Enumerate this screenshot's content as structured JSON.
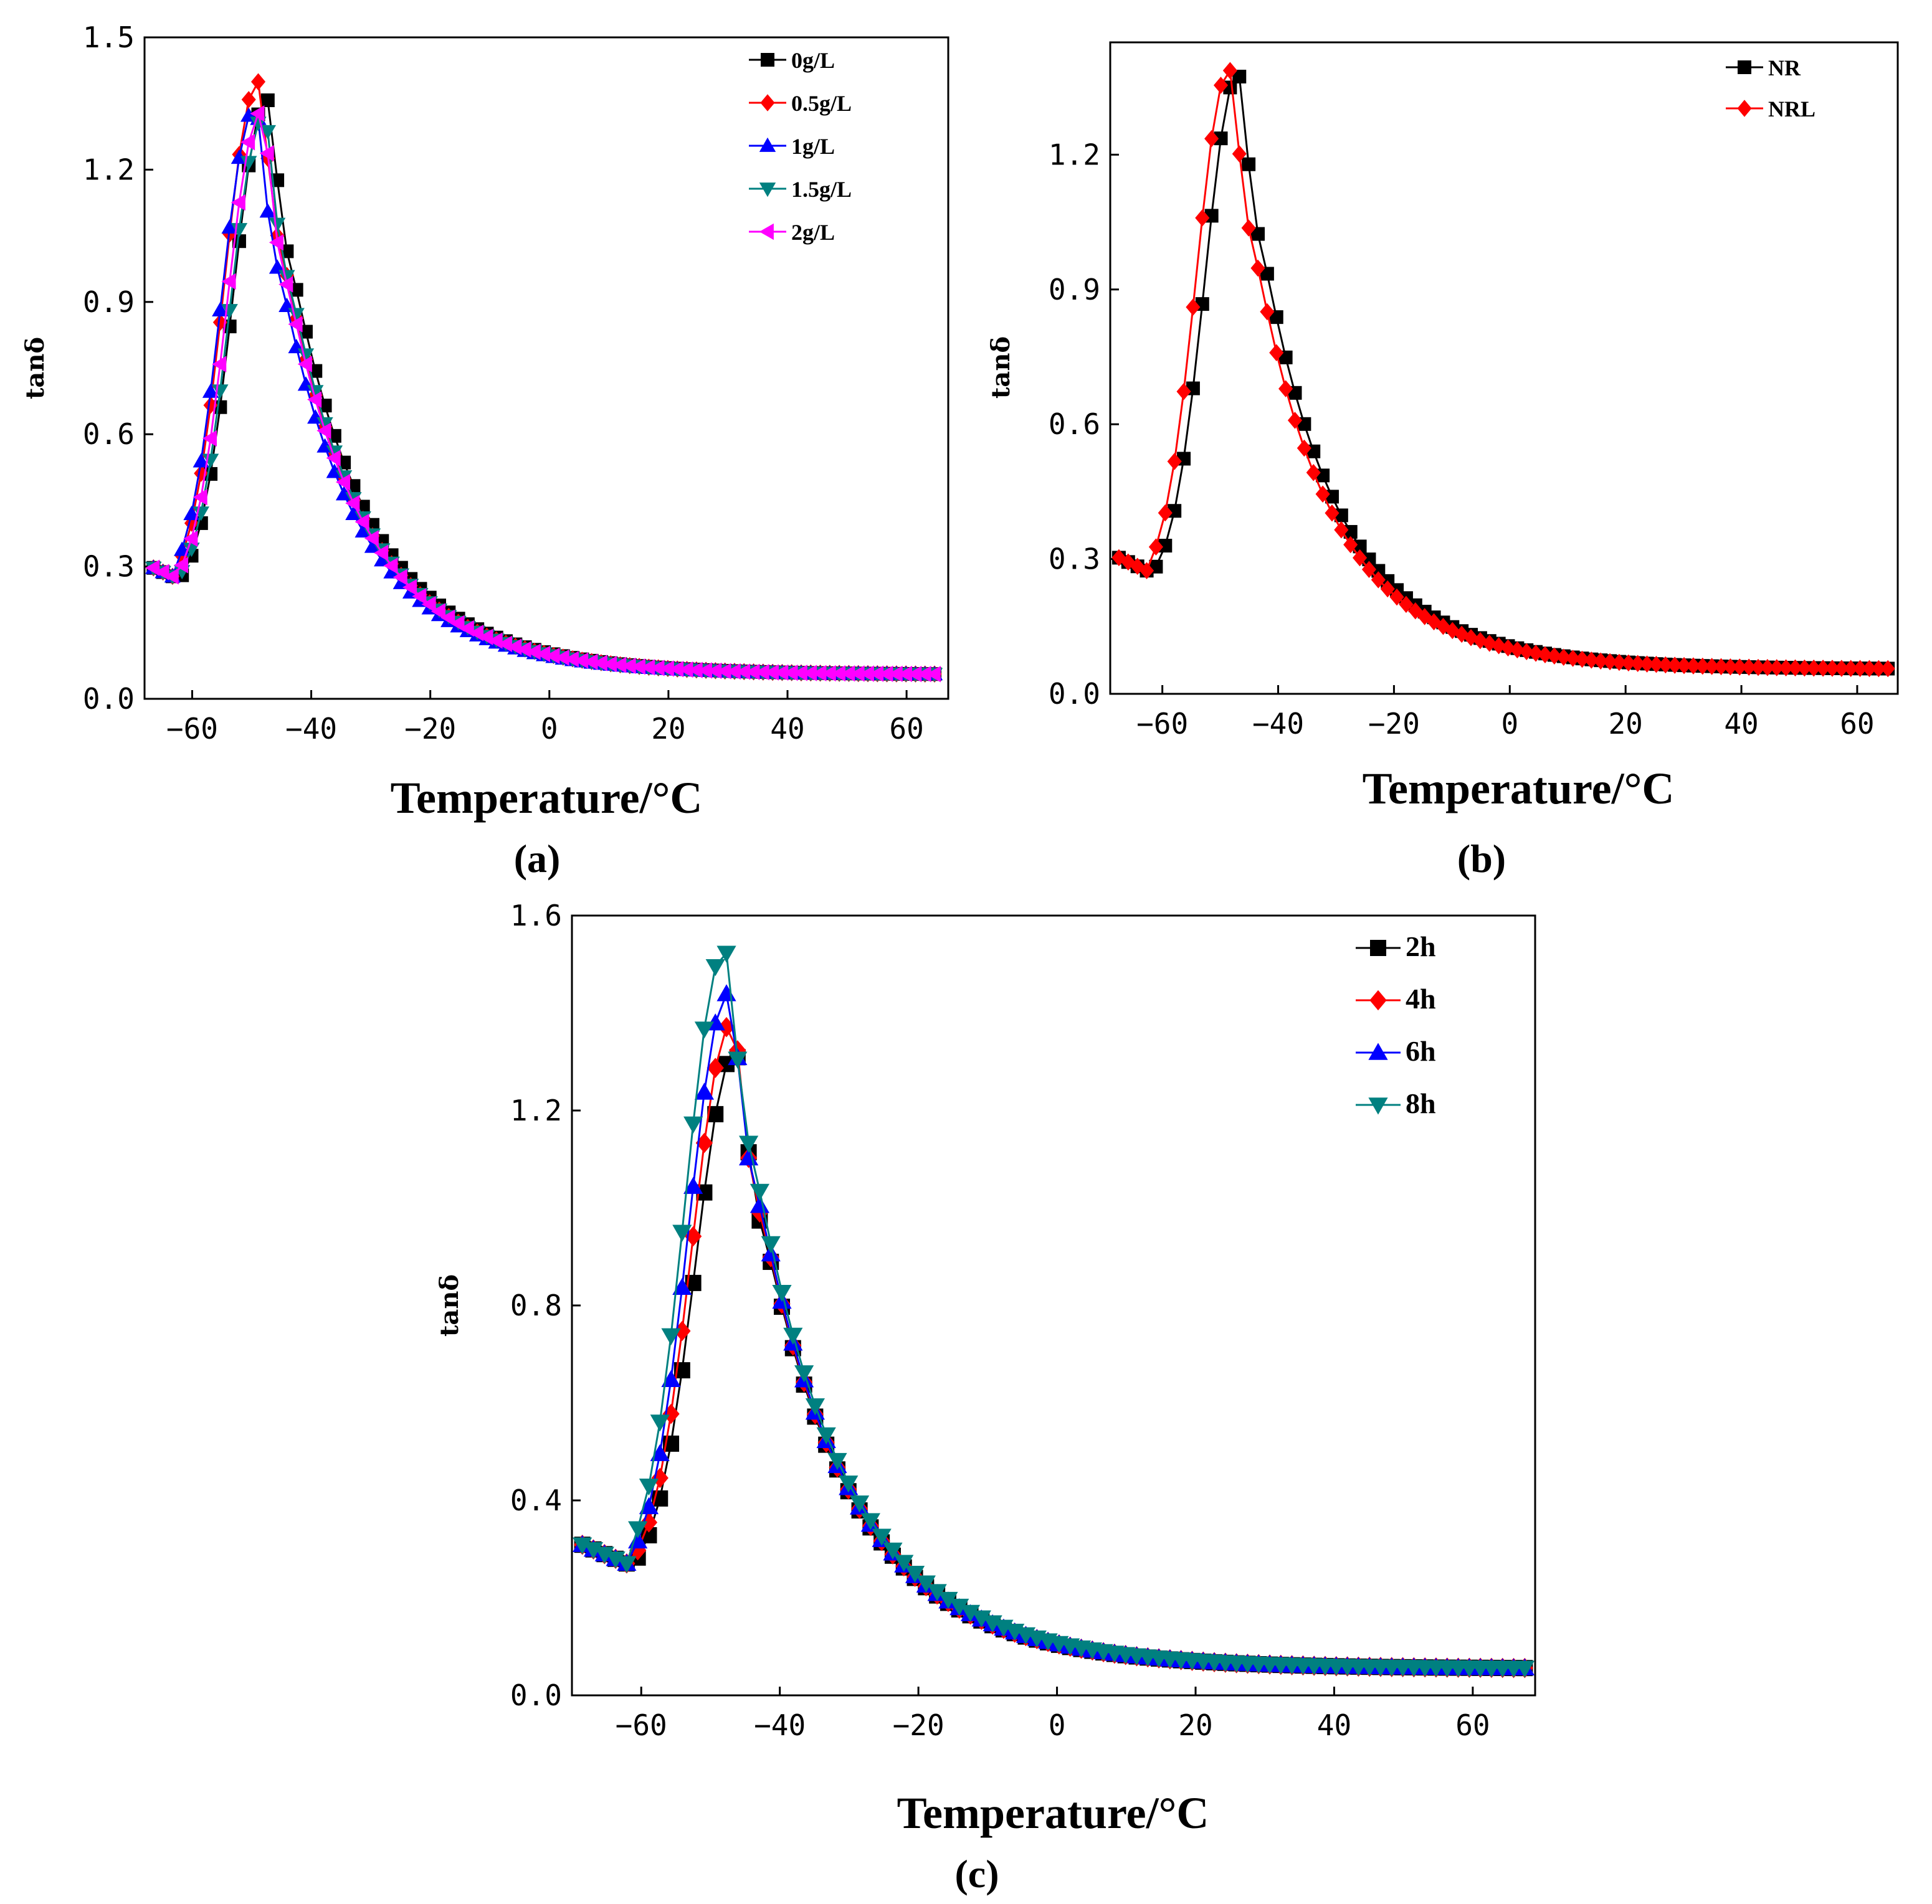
{
  "chart_data": [
    {
      "type": "line",
      "panel_label": "(a)",
      "xlabel": "Temperature/°C",
      "ylabel": "tanδ",
      "xlim": [
        -68,
        67
      ],
      "ylim": [
        0,
        1.5
      ],
      "xticks": [
        -60,
        -40,
        -20,
        0,
        20,
        40,
        60
      ],
      "yticks": [
        "0.0",
        "0.3",
        "0.6",
        "0.9",
        "1.2",
        "1.5"
      ],
      "legend_position": "top-right",
      "series": [
        {
          "name": "0g/L",
          "color": "#000000",
          "marker": "square",
          "peak_x": -47.5,
          "peak_y": 1.36
        },
        {
          "name": "0.5g/L",
          "color": "#ff0000",
          "marker": "diamond",
          "peak_x": -49.0,
          "peak_y": 1.4
        },
        {
          "name": "1g/L",
          "color": "#0000ff",
          "marker": "triangle-up",
          "peak_x": -49.5,
          "peak_y": 1.34
        },
        {
          "name": "1.5g/L",
          "color": "#008080",
          "marker": "triangle-down",
          "peak_x": -48.0,
          "peak_y": 1.32
        },
        {
          "name": "2g/L",
          "color": "#ff00ff",
          "marker": "triangle-left",
          "peak_x": -48.5,
          "peak_y": 1.33
        }
      ]
    },
    {
      "type": "line",
      "panel_label": "(b)",
      "xlabel": "Temperature/°C",
      "ylabel": "tanδ",
      "xlim": [
        -69,
        67
      ],
      "ylim": [
        0,
        1.45
      ],
      "xticks": [
        -60,
        -40,
        -20,
        0,
        20,
        40,
        60
      ],
      "yticks": [
        "0.0",
        "0.3",
        "0.6",
        "0.9",
        "1.2"
      ],
      "legend_position": "top-right",
      "series": [
        {
          "name": "NR",
          "color": "#000000",
          "marker": "square",
          "peak_x": -47.0,
          "peak_y": 1.38
        },
        {
          "name": "NRL",
          "color": "#ff0000",
          "marker": "diamond",
          "peak_x": -48.5,
          "peak_y": 1.39
        }
      ]
    },
    {
      "type": "line",
      "panel_label": "(c)",
      "xlabel": "Temperature/°C",
      "ylabel": "tanδ",
      "xlim": [
        -70,
        69
      ],
      "ylim": [
        0,
        1.6
      ],
      "xticks": [
        -60,
        -40,
        -20,
        0,
        20,
        40,
        60
      ],
      "yticks": [
        "0.0",
        "0.4",
        "0.8",
        "1.2",
        "1.6"
      ],
      "legend_position": "top-right",
      "series": [
        {
          "name": "2h",
          "color": "#000000",
          "marker": "square",
          "peak_x": -46.5,
          "peak_y": 1.32
        },
        {
          "name": "4h",
          "color": "#ff0000",
          "marker": "diamond",
          "peak_x": -47.0,
          "peak_y": 1.38
        },
        {
          "name": "6h",
          "color": "#0000ff",
          "marker": "triangle-up",
          "peak_x": -47.5,
          "peak_y": 1.44
        },
        {
          "name": "8h",
          "color": "#008080",
          "marker": "triangle-down",
          "peak_x": -48.0,
          "peak_y": 1.53
        }
      ]
    }
  ]
}
